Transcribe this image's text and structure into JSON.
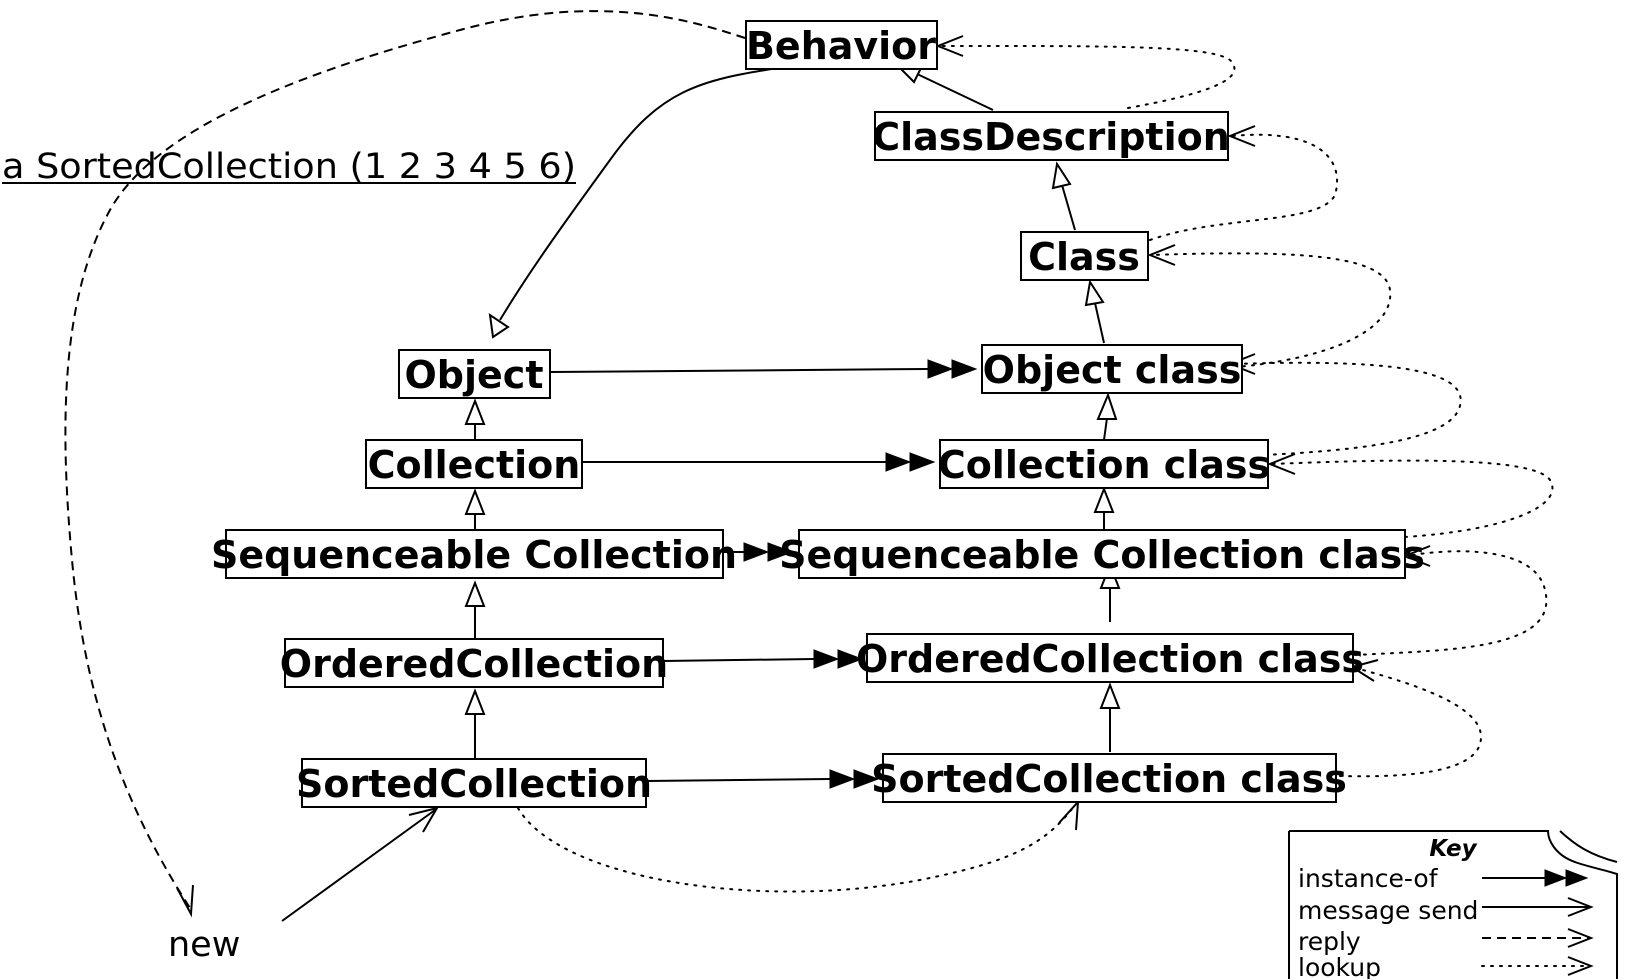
{
  "classes": {
    "behavior": "Behavior",
    "class_description": "ClassDescription",
    "class": "Class",
    "object": "Object",
    "object_class": "Object class",
    "collection": "Collection",
    "collection_class": "Collection class",
    "sequenceable": "Sequenceable Collection",
    "sequenceable_class": "Sequenceable Collection class",
    "ordered": "OrderedCollection",
    "ordered_class": "OrderedCollection class",
    "sorted": "SortedCollection",
    "sorted_class": "SortedCollection class"
  },
  "labels": {
    "instance": "a SortedCollection (1 2 3 4 5 6)",
    "message": "new"
  },
  "key": {
    "title": "Key",
    "items": [
      "instance-of",
      "message send",
      "reply",
      "lookup"
    ]
  }
}
